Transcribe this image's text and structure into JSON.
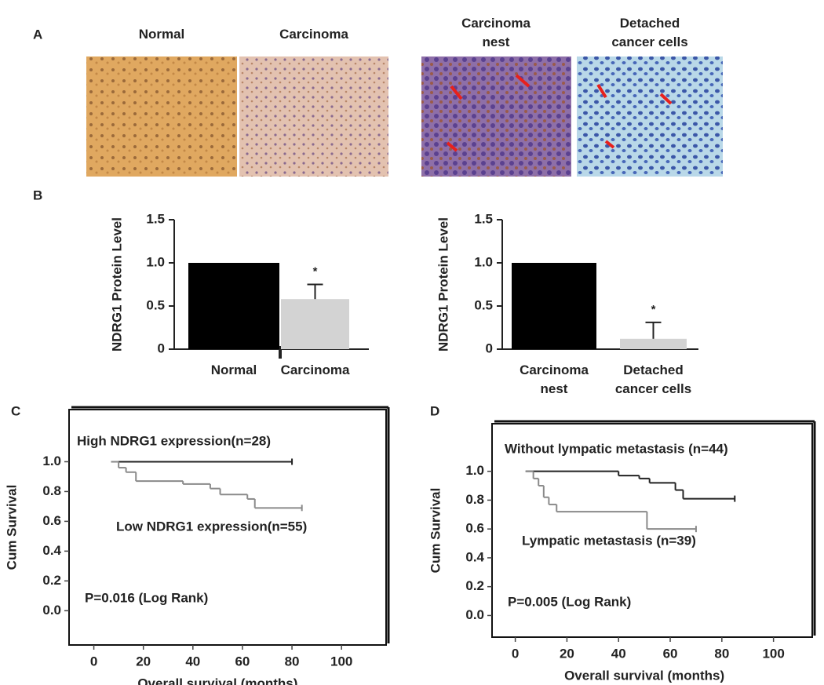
{
  "panel_labels": [
    "A",
    "B",
    "C",
    "D"
  ],
  "panel_a": {
    "images": [
      "Normal",
      "Carcinoma",
      "Carcinoma\nnest",
      "Detached\ncancer cells"
    ]
  },
  "chart_data": [
    {
      "type": "bar",
      "ylabel": "NDRG1 Protein Level",
      "categories": [
        "Normal",
        "Carcinoma"
      ],
      "values": [
        1.0,
        0.58
      ],
      "errors": [
        0,
        0.17
      ],
      "colors": [
        "#000000",
        "#d3d3d3"
      ],
      "annotations": [
        "",
        "*"
      ],
      "ylim": [
        0,
        1.5
      ],
      "yticks": [
        0,
        0.5,
        {
          "value": 1.0,
          "label": "1.0"
        },
        {
          "value": 1.5,
          "label": "1.5"
        }
      ]
    },
    {
      "type": "bar",
      "ylabel": "NDRG1 Protein Level",
      "categories": [
        "Carcinoma\nnest",
        "Detached\ncancer cells"
      ],
      "values": [
        1.0,
        0.12
      ],
      "errors": [
        0,
        0.19
      ],
      "colors": [
        "#000000",
        "#d3d3d3"
      ],
      "annotations": [
        "",
        "*"
      ],
      "ylim": [
        0,
        1.5
      ],
      "yticks": [
        0,
        0.5,
        {
          "value": 1.0,
          "label": "1.0"
        },
        {
          "value": 1.5,
          "label": "1.5"
        }
      ]
    },
    {
      "type": "line",
      "step": true,
      "xlabel": "Overall survival (months)",
      "ylabel": "Cum Survival",
      "annotation": "P=0.016 (Log Rank)",
      "series": [
        {
          "name": "High NDRG1 expression(n=28)",
          "color": "#222222",
          "x": [
            7,
            80
          ],
          "values": [
            1.0,
            1.0
          ]
        },
        {
          "name": "Low NDRG1 expression(n=55)",
          "color": "#8a8a8a",
          "x": [
            7,
            10,
            13,
            17,
            36,
            47,
            51,
            62,
            65,
            84
          ],
          "values": [
            1.0,
            0.96,
            0.93,
            0.87,
            0.85,
            0.82,
            0.78,
            0.75,
            0.69,
            0.69
          ]
        }
      ],
      "xlim": [
        -10,
        118
      ],
      "ylim": [
        -0.23,
        1.35
      ],
      "xticks": [
        0,
        20,
        40,
        60,
        80,
        100
      ],
      "yticks": [
        {
          "value": 0.0,
          "label": "0.0"
        },
        0.2,
        0.4,
        0.6,
        0.8,
        {
          "value": 1.0,
          "label": "1.0"
        }
      ]
    },
    {
      "type": "line",
      "step": true,
      "xlabel": "Overall survival (months)",
      "ylabel": "Cum Survival",
      "annotation": "P=0.005 (Log Rank)",
      "series": [
        {
          "name": "Without lympatic metastasis (n=44)",
          "color": "#222222",
          "x": [
            4,
            40,
            48,
            52,
            62,
            65,
            85
          ],
          "values": [
            1.0,
            0.97,
            0.95,
            0.92,
            0.87,
            0.81,
            0.81
          ]
        },
        {
          "name": "Lympatic metastasis (n=39)",
          "color": "#8a8a8a",
          "x": [
            4,
            7,
            9,
            11,
            13,
            16,
            51,
            70
          ],
          "values": [
            1.0,
            0.95,
            0.9,
            0.82,
            0.77,
            0.72,
            0.6,
            0.6
          ]
        }
      ],
      "xlim": [
        -9,
        115
      ],
      "ylim": [
        -0.15,
        1.33
      ],
      "xticks": [
        0,
        20,
        40,
        60,
        80,
        100
      ],
      "yticks": [
        {
          "value": 0.0,
          "label": "0.0"
        },
        0.2,
        0.4,
        0.6,
        0.8,
        {
          "value": 1.0,
          "label": "1.0"
        }
      ]
    }
  ]
}
